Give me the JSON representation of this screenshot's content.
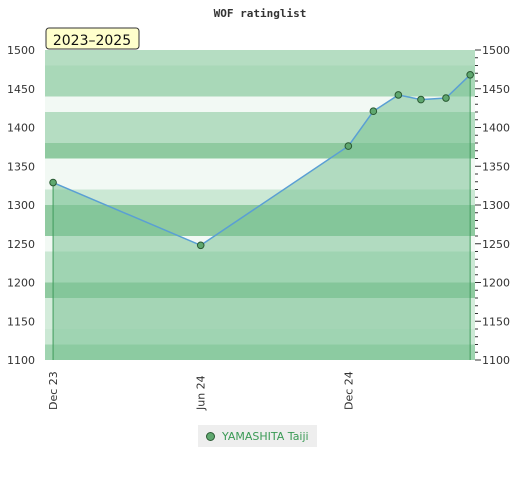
{
  "chart_data": {
    "type": "area",
    "title": "WOF ratinglist",
    "badge": "2023–2025",
    "x": [
      "2023-12-01",
      "2024-06-01",
      "2024-12-01",
      "2025-01-01",
      "2025-02-01",
      "2025-03-01",
      "2025-04-01",
      "2025-05-01"
    ],
    "series": [
      {
        "name": "YAMASHITA Taiji",
        "values": [
          1329,
          1248,
          1376,
          1421,
          1442,
          1436,
          1438,
          1468
        ]
      }
    ],
    "xticks": [
      "Dec 23",
      "Jun 24",
      "Dec 24"
    ],
    "yticks": [
      1100,
      1150,
      1200,
      1250,
      1300,
      1350,
      1400,
      1450,
      1500
    ],
    "ylim": [
      1100,
      1500
    ],
    "colors": {
      "line": "#5a9fd4",
      "fill": "#7cc295",
      "marker": "#5fa86f",
      "marker_edge": "#2a5a33"
    }
  }
}
